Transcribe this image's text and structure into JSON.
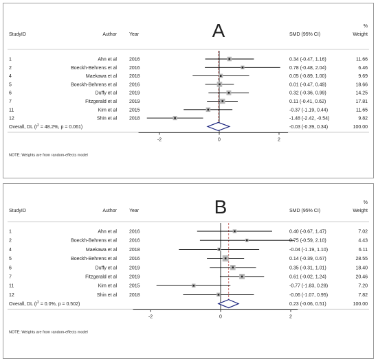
{
  "chart_data": [
    {
      "type": "forest",
      "panel_label": "A",
      "columns": {
        "study": "StudyID",
        "author": "Author",
        "year": "Year",
        "effect": "SMD (95% CI)",
        "weight_pct": "%",
        "weight": "Weight"
      },
      "x_ticks": [
        -2,
        0,
        2
      ],
      "xlim": [
        -2.7,
        2.3
      ],
      "rows": [
        {
          "id": "1",
          "author": "Ahn et al",
          "year": "2016",
          "smd": 0.34,
          "lo": -0.47,
          "hi": 1.16,
          "ci_text": "0.34 (-0.47, 1.16)",
          "weight": 11.66,
          "weight_text": "11.66"
        },
        {
          "id": "2",
          "author": "Boeckh-Behrens et al",
          "year": "2016",
          "smd": 0.78,
          "lo": -0.48,
          "hi": 2.04,
          "ci_text": "0.78 (-0.48, 2.04)",
          "weight": 6.46,
          "weight_text": "6.46"
        },
        {
          "id": "4",
          "author": "Maekawa et al",
          "year": "2018",
          "smd": 0.05,
          "lo": -0.89,
          "hi": 1.0,
          "ci_text": "0.05 (-0.89, 1.00)",
          "weight": 9.69,
          "weight_text": "9.69"
        },
        {
          "id": "5",
          "author": "Boeckh-Behrens et al",
          "year": "2016",
          "smd": 0.01,
          "lo": -0.47,
          "hi": 0.49,
          "ci_text": "0.01 (-0.47, 0.49)",
          "weight": 18.66,
          "weight_text": "18.66"
        },
        {
          "id": "6",
          "author": "Duffy et al",
          "year": "2019",
          "smd": 0.32,
          "lo": -0.36,
          "hi": 0.99,
          "ci_text": "0.32 (-0.36, 0.99)",
          "weight": 14.25,
          "weight_text": "14.25"
        },
        {
          "id": "7",
          "author": "Fitzgerald et al",
          "year": "2019",
          "smd": 0.11,
          "lo": -0.41,
          "hi": 0.62,
          "ci_text": "0.11 (-0.41, 0.62)",
          "weight": 17.81,
          "weight_text": "17.81"
        },
        {
          "id": "11",
          "author": "Kim et al",
          "year": "2015",
          "smd": -0.37,
          "lo": -1.19,
          "hi": 0.44,
          "ci_text": "-0.37 (-1.19, 0.44)",
          "weight": 11.65,
          "weight_text": "11.65"
        },
        {
          "id": "12",
          "author": "Shin et al",
          "year": "2018",
          "smd": -1.48,
          "lo": -2.42,
          "hi": -0.54,
          "ci_text": "-1.48 (-2.42, -0.54)",
          "weight": 9.82,
          "weight_text": "9.82"
        }
      ],
      "overall": {
        "label_prefix": "Overall, DL (I",
        "label_sup": "2",
        "label_suffix": " = 48.2%, p = 0.061)",
        "smd": -0.03,
        "lo": -0.39,
        "hi": 0.34,
        "ci_text": "-0.03 (-0.39, 0.34)",
        "weight_text": "100.00"
      },
      "note": "NOTE: Weights are from random-effects model"
    },
    {
      "type": "forest",
      "panel_label": "B",
      "columns": {
        "study": "StudyID",
        "author": "Author",
        "year": "Year",
        "effect": "SMD (95% CI)",
        "weight_pct": "%",
        "weight": "Weight"
      },
      "x_ticks": [
        -2,
        0,
        2
      ],
      "xlim": [
        -2.5,
        2.2
      ],
      "rows": [
        {
          "id": "1",
          "author": "Ahn et al",
          "year": "2016",
          "smd": 0.4,
          "lo": -0.67,
          "hi": 1.47,
          "ci_text": "0.40 (-0.67, 1.47)",
          "weight": 7.02,
          "weight_text": "7.02"
        },
        {
          "id": "2",
          "author": "Boeckh-Behrens et al",
          "year": "2016",
          "smd": 0.75,
          "lo": -0.59,
          "hi": 2.1,
          "ci_text": "0.75 (-0.59, 2.10)",
          "weight": 4.43,
          "weight_text": "4.43"
        },
        {
          "id": "4",
          "author": "Maekawa et al",
          "year": "2018",
          "smd": -0.04,
          "lo": -1.19,
          "hi": 1.1,
          "ci_text": "-0.04 (-1.19, 1.10)",
          "weight": 6.11,
          "weight_text": "6.11"
        },
        {
          "id": "5",
          "author": "Boeckh-Behrens et al",
          "year": "2016",
          "smd": 0.14,
          "lo": -0.39,
          "hi": 0.67,
          "ci_text": "0.14 (-0.39, 0.67)",
          "weight": 28.55,
          "weight_text": "28.55"
        },
        {
          "id": "6",
          "author": "Duffy et al",
          "year": "2019",
          "smd": 0.35,
          "lo": -0.31,
          "hi": 1.01,
          "ci_text": "0.35 (-0.31, 1.01)",
          "weight": 18.4,
          "weight_text": "18.40"
        },
        {
          "id": "7",
          "author": "Fitzgerald et al",
          "year": "2019",
          "smd": 0.61,
          "lo": -0.02,
          "hi": 1.24,
          "ci_text": "0.61 (-0.02, 1.24)",
          "weight": 20.46,
          "weight_text": "20.46"
        },
        {
          "id": "11",
          "author": "Kim et al",
          "year": "2015",
          "smd": -0.77,
          "lo": -1.83,
          "hi": 0.28,
          "ci_text": "-0.77 (-1.83, 0.28)",
          "weight": 7.2,
          "weight_text": "7.20"
        },
        {
          "id": "12",
          "author": "Shin et al",
          "year": "2018",
          "smd": -0.06,
          "lo": -1.07,
          "hi": 0.95,
          "ci_text": "-0.06 (-1.07, 0.95)",
          "weight": 7.82,
          "weight_text": "7.82"
        }
      ],
      "overall": {
        "label_prefix": "Overall, DL (I",
        "label_sup": "2",
        "label_suffix": " = 0.0%, p = 0.502)",
        "smd": 0.23,
        "lo": -0.06,
        "hi": 0.51,
        "ci_text": "0.23 (-0.06, 0.51)",
        "weight_text": "100.00"
      },
      "note": "NOTE: Weights are from random-effects model"
    }
  ],
  "colors": {
    "diamond": "#1a237e",
    "panel_letter": "#1a237e",
    "overall_line": "#c0504d",
    "box": "#b8b8b8"
  }
}
